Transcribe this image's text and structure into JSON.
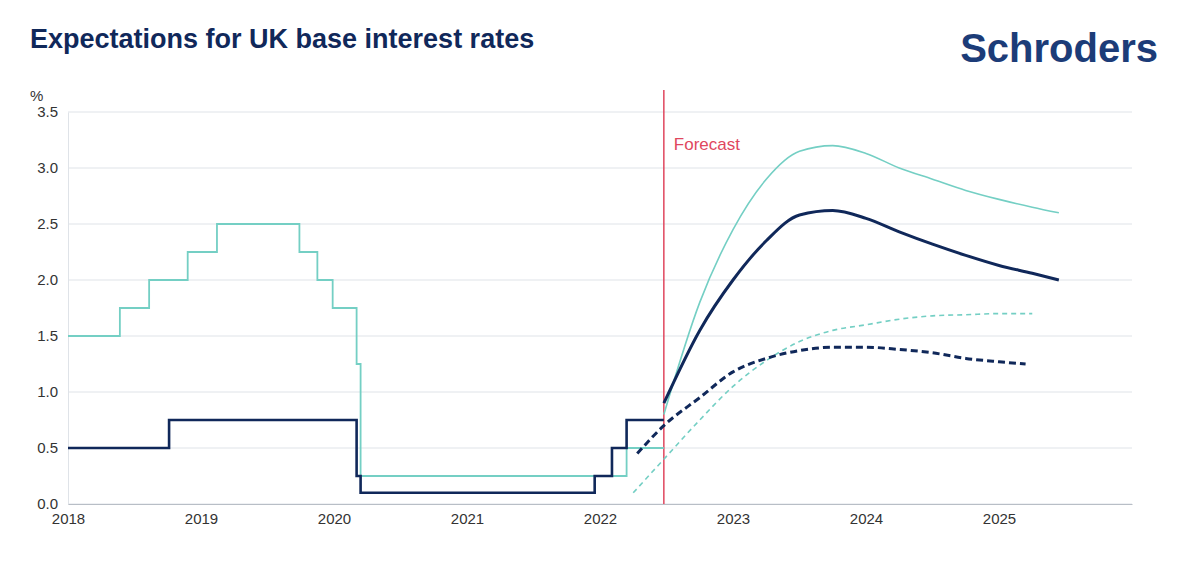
{
  "chart_data": {
    "type": "line",
    "title": "Expectations for UK base interest rates",
    "brand": "Schroders",
    "y_label": "%",
    "xlim": [
      2018,
      2026
    ],
    "xticks": [
      2018,
      2019,
      2020,
      2021,
      2022,
      2023,
      2024,
      2025
    ],
    "ylim": [
      0,
      3.5
    ],
    "yticks": [
      {
        "value": 0,
        "label": "0.0"
      },
      0.5,
      {
        "value": 1,
        "label": "1.0"
      },
      1.5,
      {
        "value": 2,
        "label": "2.0"
      },
      2.5,
      {
        "value": 3,
        "label": "3.0"
      },
      3.5
    ],
    "grid": true,
    "annotations": [
      {
        "text": "Forecast",
        "x": 2022.48,
        "color": "#e0475e"
      }
    ],
    "series": [
      {
        "color": "#74cfc4",
        "line_style": "step",
        "x": [
          2018,
          2018.39,
          2018.61,
          2018.9,
          2019.12,
          2019.74,
          2019.875,
          2019.99,
          2020.17,
          2020.2,
          2022.2,
          2022.48
        ],
        "values": [
          1.5,
          1.75,
          2.0,
          2.25,
          2.5,
          2.25,
          2.0,
          1.75,
          1.25,
          0.25,
          0.5,
          0.5
        ]
      },
      {
        "color": "#10285a",
        "line_style": "step",
        "x": [
          2018,
          2018.76,
          2020.17,
          2020.2,
          2021.96,
          2022.09,
          2022.2,
          2022.48
        ],
        "values": [
          0.5,
          0.75,
          0.25,
          0.1,
          0.25,
          0.5,
          0.75,
          0.75
        ]
      },
      {
        "color": "#74cfc4",
        "line_style": "solid",
        "x": [
          2022.48,
          2022.75,
          2023.0,
          2023.25,
          2023.5,
          2023.75,
          2024.0,
          2024.25,
          2024.5,
          2024.75,
          2025.0,
          2025.25,
          2025.45
        ],
        "values": [
          0.8,
          1.8,
          2.45,
          2.9,
          3.15,
          3.2,
          3.13,
          3.0,
          2.9,
          2.8,
          2.72,
          2.65,
          2.6
        ]
      },
      {
        "color": "#10285a",
        "line_style": "solid",
        "x": [
          2022.48,
          2022.75,
          2023.0,
          2023.25,
          2023.5,
          2023.75,
          2024.0,
          2024.25,
          2024.5,
          2024.75,
          2025.0,
          2025.25,
          2025.45
        ],
        "values": [
          0.9,
          1.55,
          2.0,
          2.35,
          2.58,
          2.62,
          2.55,
          2.43,
          2.32,
          2.22,
          2.13,
          2.06,
          2.0
        ]
      },
      {
        "color": "#74cfc4",
        "line_style": "dashed",
        "x": [
          2022.25,
          2022.48,
          2022.75,
          2023.0,
          2023.25,
          2023.5,
          2023.75,
          2024.0,
          2024.25,
          2024.5,
          2024.75,
          2025.0,
          2025.25
        ],
        "values": [
          0.1,
          0.4,
          0.75,
          1.05,
          1.28,
          1.45,
          1.55,
          1.6,
          1.65,
          1.68,
          1.69,
          1.7,
          1.7
        ]
      },
      {
        "color": "#10285a",
        "line_style": "dashed",
        "x": [
          2022.28,
          2022.48,
          2022.75,
          2023.0,
          2023.25,
          2023.5,
          2023.75,
          2024.0,
          2024.25,
          2024.5,
          2024.75,
          2025.0,
          2025.2
        ],
        "values": [
          0.45,
          0.7,
          0.95,
          1.18,
          1.3,
          1.37,
          1.4,
          1.4,
          1.38,
          1.35,
          1.3,
          1.27,
          1.25
        ]
      }
    ]
  }
}
